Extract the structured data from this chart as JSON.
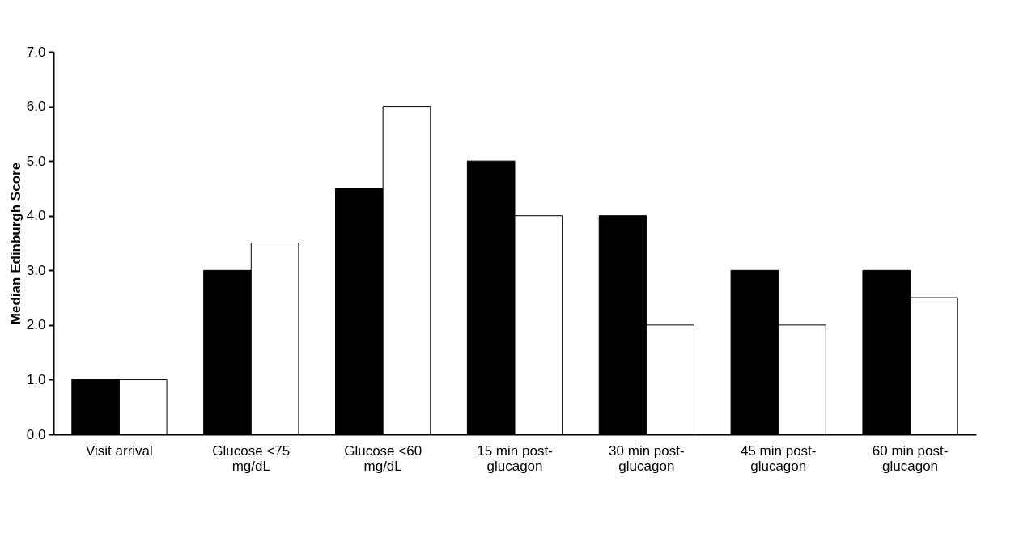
{
  "chart_data": {
    "type": "bar",
    "ylabel": "Median Edinburgh Score",
    "categories": [
      "Visit arrival",
      "Glucose <75 mg/dL",
      "Glucose <60 mg/dL",
      "15 min post-glucagon",
      "30 min post-glucagon",
      "45 min post-glucagon",
      "60 min post-glucagon"
    ],
    "series": [
      {
        "color": "#000000",
        "values": [
          1.0,
          3.0,
          4.5,
          5.0,
          4.0,
          3.0,
          3.0
        ]
      },
      {
        "color": "#ffffff",
        "values": [
          1.0,
          3.5,
          6.0,
          4.0,
          2.0,
          2.0,
          2.5
        ]
      }
    ],
    "ylim": [
      0,
      7
    ],
    "yticks": [
      {
        "value": 0,
        "label": "0.0"
      },
      {
        "value": 1,
        "label": "1.0"
      },
      {
        "value": 2,
        "label": "2.0"
      },
      {
        "value": 3,
        "label": "3.0"
      },
      {
        "value": 4,
        "label": "4.0"
      },
      {
        "value": 5,
        "label": "5.0"
      },
      {
        "value": 6,
        "label": "6.0"
      },
      {
        "value": 7,
        "label": "7.0"
      }
    ],
    "grid": false,
    "legend": false
  }
}
